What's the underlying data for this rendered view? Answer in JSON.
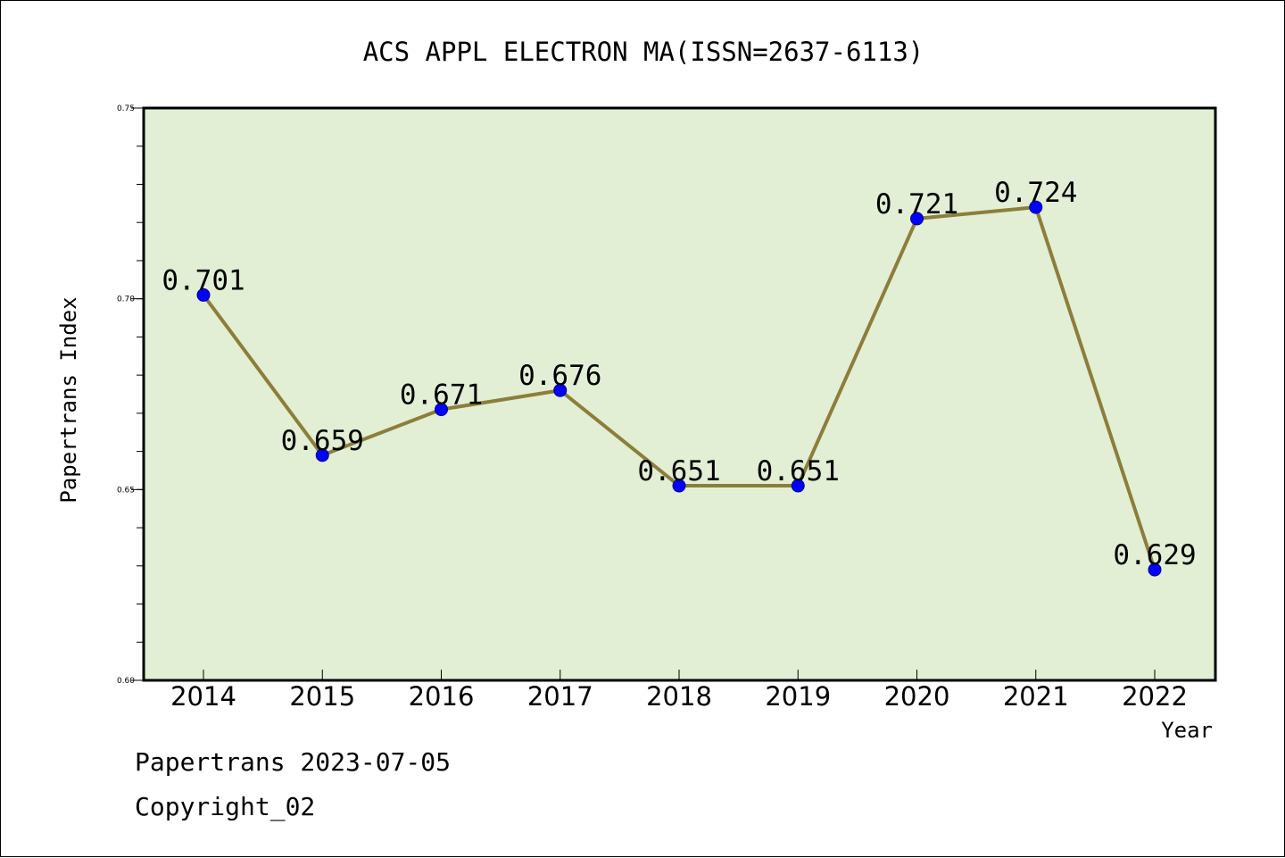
{
  "colors": {
    "plot_background": "#e2efd5",
    "line": "#8c7e3a",
    "marker": "#0000ff",
    "axis": "#000000"
  },
  "footer": {
    "source_text": "Papertrans 2023-07-05",
    "copyright_text": "Copyright_02"
  },
  "chart_data": {
    "type": "line",
    "title": "ACS APPL ELECTRON MA(ISSN=2637-6113)",
    "xlabel": "Year",
    "ylabel": "Papertrans Index",
    "categories": [
      "2014",
      "2015",
      "2016",
      "2017",
      "2018",
      "2019",
      "2020",
      "2021",
      "2022"
    ],
    "values": [
      0.701,
      0.659,
      0.671,
      0.676,
      0.651,
      0.651,
      0.721,
      0.724,
      0.629
    ],
    "data_labels": [
      "0.701",
      "0.659",
      "0.671",
      "0.676",
      "0.651",
      "0.651",
      "0.721",
      "0.724",
      "0.629"
    ],
    "ylim": [
      0.6,
      0.75
    ],
    "yticks": [
      0.6,
      0.65,
      0.7,
      0.75
    ],
    "ytick_labels": [
      "0.60",
      "0.65",
      "0.70",
      "0.75"
    ],
    "y_minor_step": 0.01,
    "grid": false,
    "legend": "none"
  }
}
